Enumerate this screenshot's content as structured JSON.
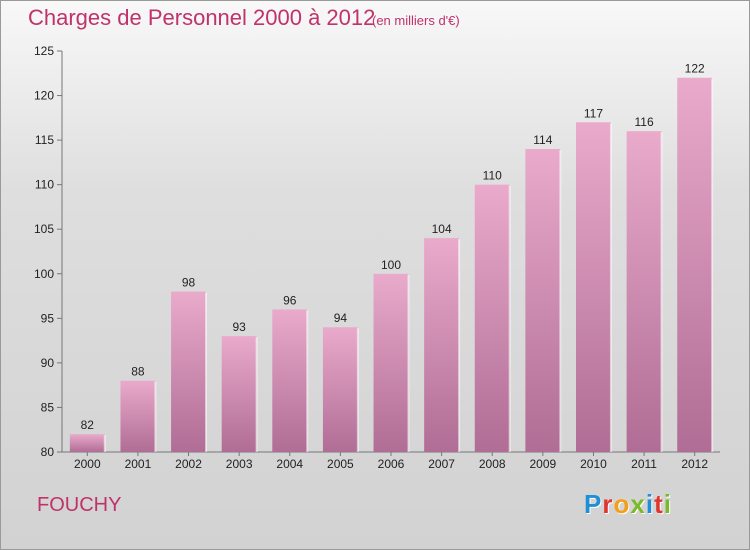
{
  "header": {
    "title": "Charges de Personnel 2000 à 2012",
    "unit": "(en milliers d'€)"
  },
  "footer": {
    "town": "FOUCHY",
    "logo_text": "Proxiti"
  },
  "colors": {
    "title": "#c0326a",
    "bar_top": "#e9aacb",
    "bar_bottom": "#b06d95",
    "logo_letters": [
      "#1f8fd6",
      "#e0352c",
      "#f2a01c",
      "#7ab929",
      "#1f8fd6",
      "#e0352c",
      "#7ab929"
    ]
  },
  "chart_data": {
    "type": "bar",
    "categories": [
      "2000",
      "2001",
      "2002",
      "2003",
      "2004",
      "2005",
      "2006",
      "2007",
      "2008",
      "2009",
      "2010",
      "2011",
      "2012"
    ],
    "values": [
      82,
      88,
      98,
      93,
      96,
      94,
      100,
      104,
      110,
      114,
      117,
      116,
      122
    ],
    "title": "Charges de Personnel 2000 à 2012",
    "ylim": [
      80,
      125
    ],
    "yticks": [
      80,
      85,
      90,
      95,
      100,
      105,
      110,
      115,
      120,
      125
    ],
    "grid": false,
    "data_labels": true
  }
}
